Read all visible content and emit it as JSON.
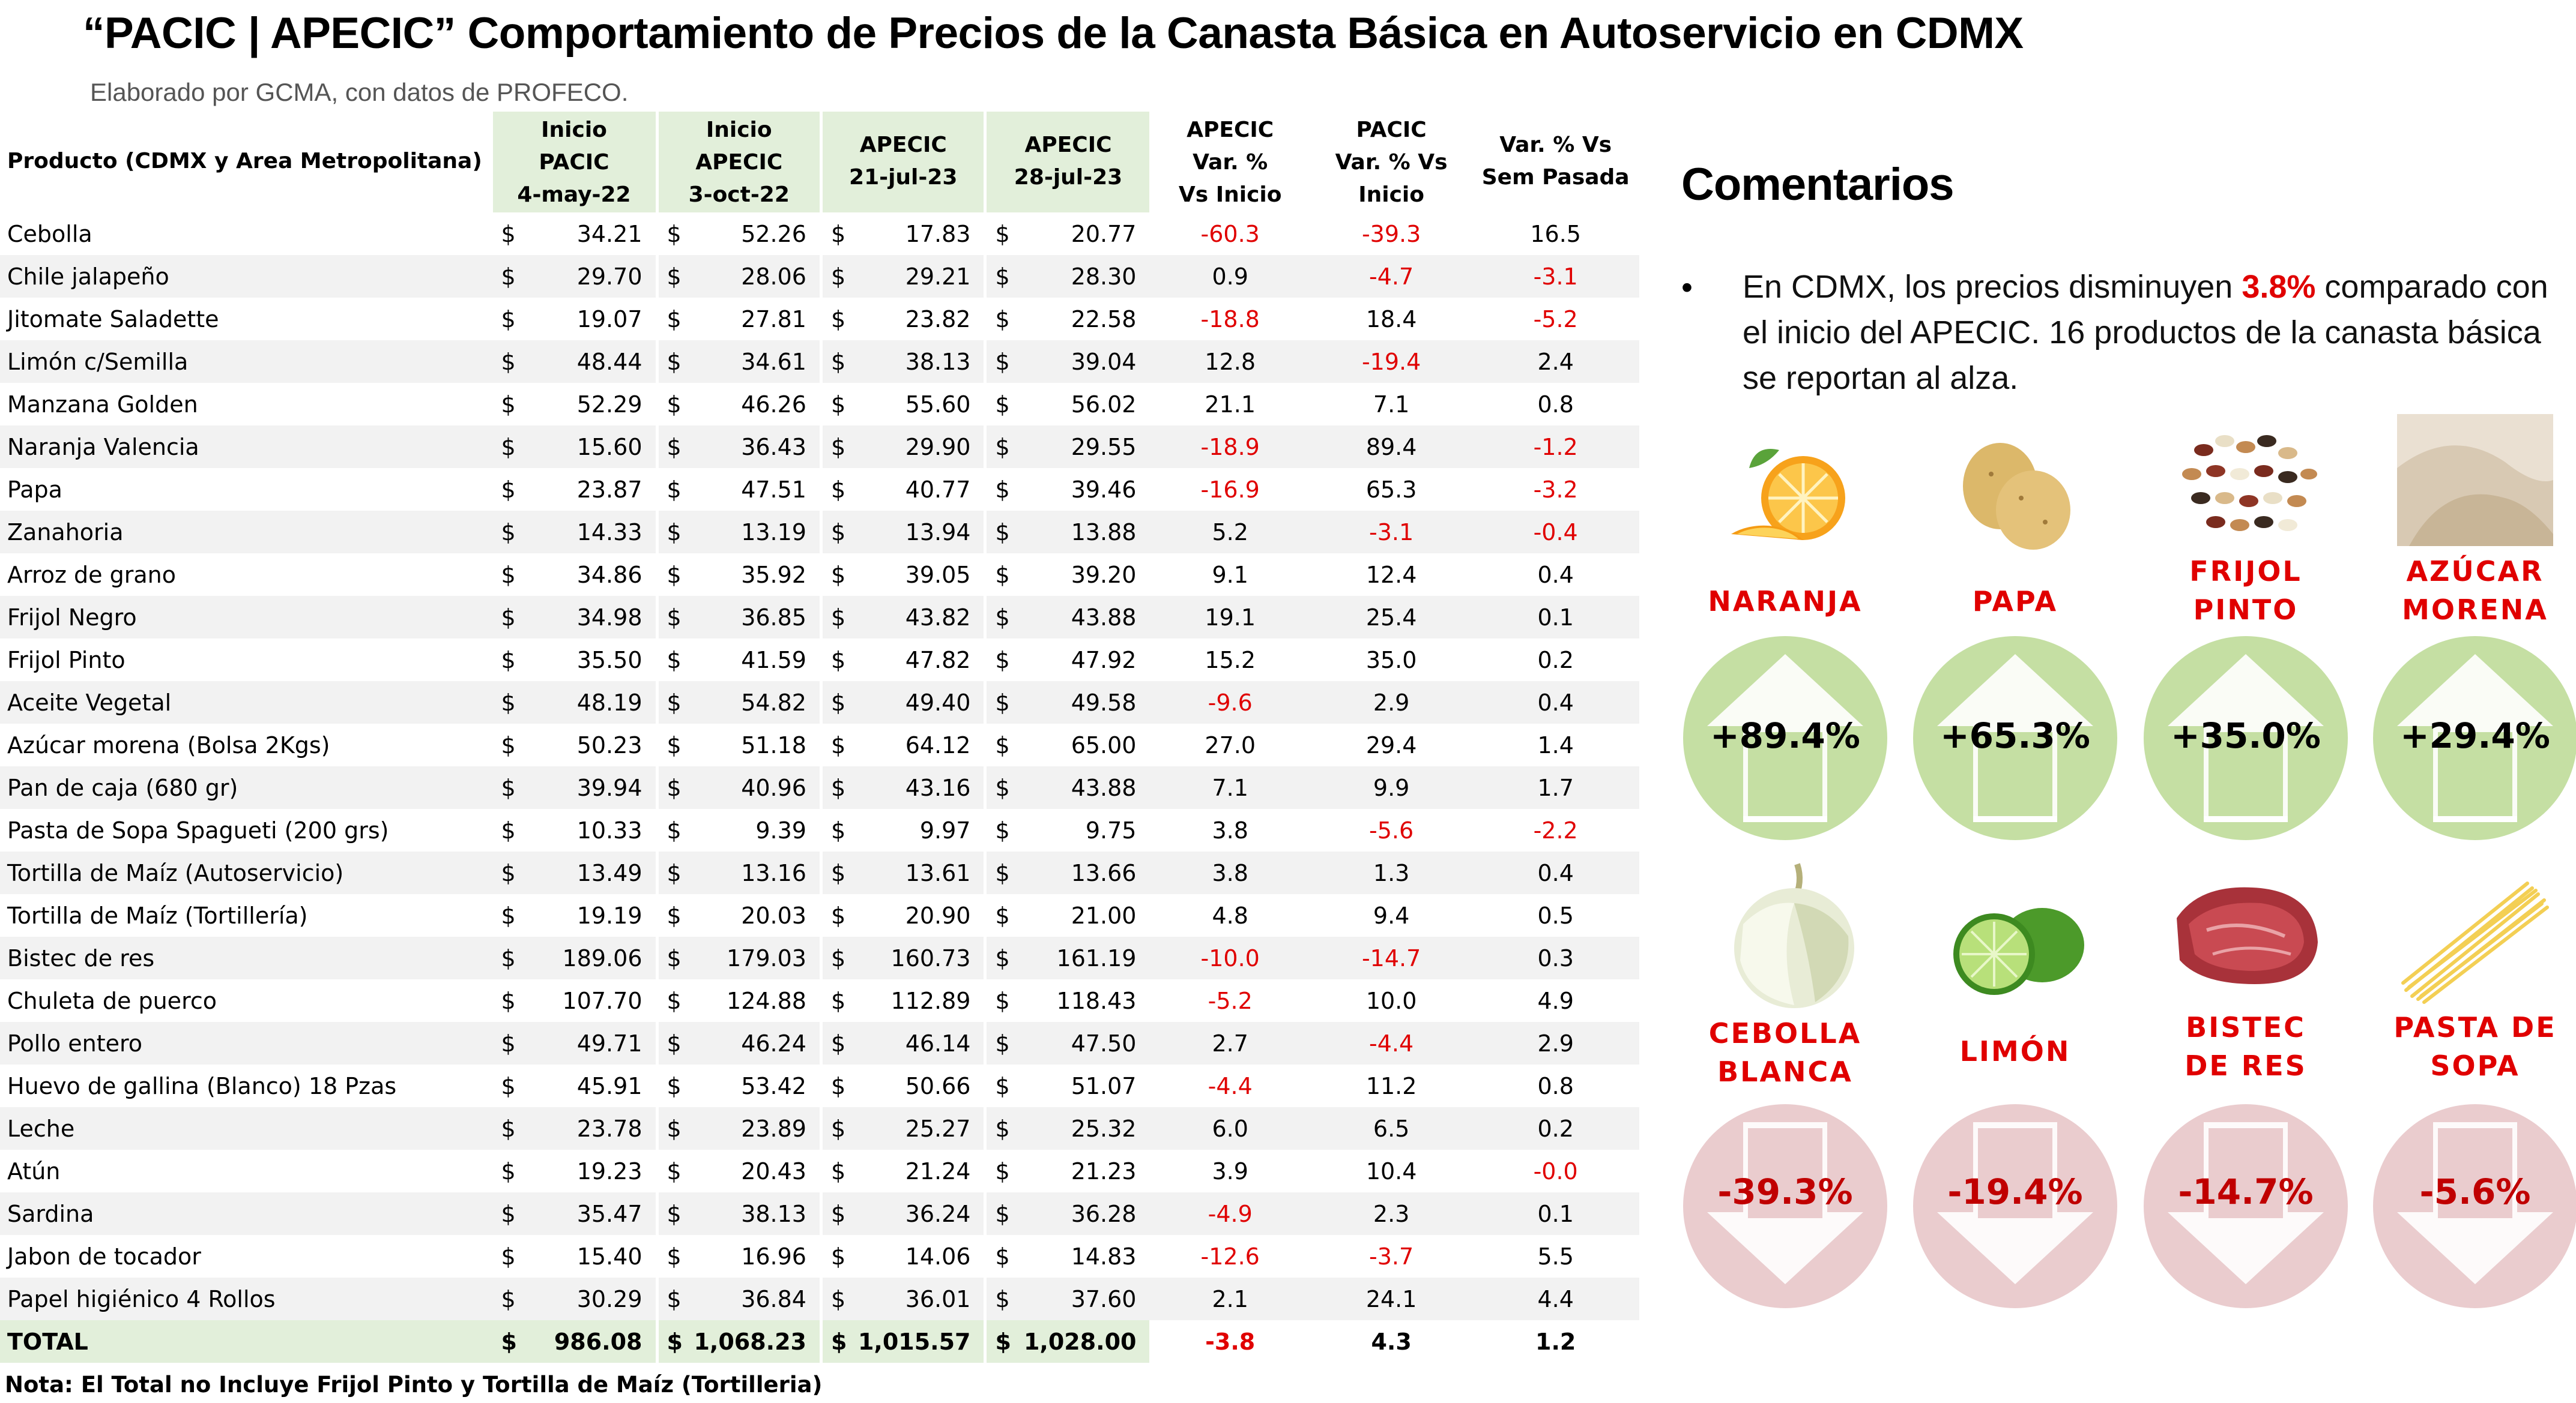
{
  "title": "“PACIC | APECIC” Comportamiento de Precios de la Canasta Básica en Autoservicio en CDMX",
  "subtitle": "Elaborado por GCMA, con datos de PROFECO.",
  "table": {
    "headers": {
      "product": "Producto (CDMX y Area Metropolitana)",
      "col1": [
        "Inicio",
        "PACIC",
        "4-may-22"
      ],
      "col2": [
        "Inicio",
        "APECIC",
        "3-oct-22"
      ],
      "col3": [
        "APECIC",
        "21-jul-23"
      ],
      "col4": [
        "APECIC",
        "28-jul-23"
      ],
      "col5": [
        "APECIC",
        "Var. %",
        "Vs  Inicio"
      ],
      "col6": [
        "PACIC",
        "Var. % Vs",
        "Inicio"
      ],
      "col7": [
        "Var. % Vs",
        "Sem Pasada"
      ]
    },
    "currency": "$",
    "rows": [
      {
        "name": "Cebolla",
        "v1": "34.21",
        "v2": "52.26",
        "v3": "17.83",
        "v4": "20.77",
        "p1": "-60.3",
        "p2": "-39.3",
        "p3": "16.5"
      },
      {
        "name": "Chile jalapeño",
        "v1": "29.70",
        "v2": "28.06",
        "v3": "29.21",
        "v4": "28.30",
        "p1": "0.9",
        "p2": "-4.7",
        "p3": "-3.1"
      },
      {
        "name": "Jitomate Saladette",
        "v1": "19.07",
        "v2": "27.81",
        "v3": "23.82",
        "v4": "22.58",
        "p1": "-18.8",
        "p2": "18.4",
        "p3": "-5.2"
      },
      {
        "name": "Limón c/Semilla",
        "v1": "48.44",
        "v2": "34.61",
        "v3": "38.13",
        "v4": "39.04",
        "p1": "12.8",
        "p2": "-19.4",
        "p3": "2.4"
      },
      {
        "name": "Manzana Golden",
        "v1": "52.29",
        "v2": "46.26",
        "v3": "55.60",
        "v4": "56.02",
        "p1": "21.1",
        "p2": "7.1",
        "p3": "0.8"
      },
      {
        "name": "Naranja Valencia",
        "v1": "15.60",
        "v2": "36.43",
        "v3": "29.90",
        "v4": "29.55",
        "p1": "-18.9",
        "p2": "89.4",
        "p3": "-1.2"
      },
      {
        "name": "Papa",
        "v1": "23.87",
        "v2": "47.51",
        "v3": "40.77",
        "v4": "39.46",
        "p1": "-16.9",
        "p2": "65.3",
        "p3": "-3.2"
      },
      {
        "name": "Zanahoria",
        "v1": "14.33",
        "v2": "13.19",
        "v3": "13.94",
        "v4": "13.88",
        "p1": "5.2",
        "p2": "-3.1",
        "p3": "-0.4"
      },
      {
        "name": "Arroz de grano",
        "v1": "34.86",
        "v2": "35.92",
        "v3": "39.05",
        "v4": "39.20",
        "p1": "9.1",
        "p2": "12.4",
        "p3": "0.4"
      },
      {
        "name": "Frijol Negro",
        "v1": "34.98",
        "v2": "36.85",
        "v3": "43.82",
        "v4": "43.88",
        "p1": "19.1",
        "p2": "25.4",
        "p3": "0.1"
      },
      {
        "name": "Frijol Pinto",
        "v1": "35.50",
        "v2": "41.59",
        "v3": "47.82",
        "v4": "47.92",
        "p1": "15.2",
        "p2": "35.0",
        "p3": "0.2"
      },
      {
        "name": "Aceite Vegetal",
        "v1": "48.19",
        "v2": "54.82",
        "v3": "49.40",
        "v4": "49.58",
        "p1": "-9.6",
        "p2": "2.9",
        "p3": "0.4"
      },
      {
        "name": "Azúcar morena (Bolsa 2Kgs)",
        "v1": "50.23",
        "v2": "51.18",
        "v3": "64.12",
        "v4": "65.00",
        "p1": "27.0",
        "p2": "29.4",
        "p3": "1.4"
      },
      {
        "name": "Pan de caja (680 gr)",
        "v1": "39.94",
        "v2": "40.96",
        "v3": "43.16",
        "v4": "43.88",
        "p1": "7.1",
        "p2": "9.9",
        "p3": "1.7"
      },
      {
        "name": "Pasta de Sopa Spagueti (200 grs)",
        "v1": "10.33",
        "v2": "9.39",
        "v3": "9.97",
        "v4": "9.75",
        "p1": "3.8",
        "p2": "-5.6",
        "p3": "-2.2"
      },
      {
        "name": "Tortilla de Maíz (Autoservicio)",
        "v1": "13.49",
        "v2": "13.16",
        "v3": "13.61",
        "v4": "13.66",
        "p1": "3.8",
        "p2": "1.3",
        "p3": "0.4"
      },
      {
        "name": "Tortilla de Maíz (Tortillería)",
        "v1": "19.19",
        "v2": "20.03",
        "v3": "20.90",
        "v4": "21.00",
        "p1": "4.8",
        "p2": "9.4",
        "p3": "0.5"
      },
      {
        "name": "Bistec de res",
        "v1": "189.06",
        "v2": "179.03",
        "v3": "160.73",
        "v4": "161.19",
        "p1": "-10.0",
        "p2": "-14.7",
        "p3": "0.3"
      },
      {
        "name": "Chuleta de puerco",
        "v1": "107.70",
        "v2": "124.88",
        "v3": "112.89",
        "v4": "118.43",
        "p1": "-5.2",
        "p2": "10.0",
        "p3": "4.9"
      },
      {
        "name": "Pollo entero",
        "v1": "49.71",
        "v2": "46.24",
        "v3": "46.14",
        "v4": "47.50",
        "p1": "2.7",
        "p2": "-4.4",
        "p3": "2.9"
      },
      {
        "name": "Huevo de gallina (Blanco) 18 Pzas",
        "v1": "45.91",
        "v2": "53.42",
        "v3": "50.66",
        "v4": "51.07",
        "p1": "-4.4",
        "p2": "11.2",
        "p3": "0.8"
      },
      {
        "name": "Leche",
        "v1": "23.78",
        "v2": "23.89",
        "v3": "25.27",
        "v4": "25.32",
        "p1": "6.0",
        "p2": "6.5",
        "p3": "0.2"
      },
      {
        "name": "Atún",
        "v1": "19.23",
        "v2": "20.43",
        "v3": "21.24",
        "v4": "21.23",
        "p1": "3.9",
        "p2": "10.4",
        "p3": "-0.0"
      },
      {
        "name": "Sardina",
        "v1": "35.47",
        "v2": "38.13",
        "v3": "36.24",
        "v4": "36.28",
        "p1": "-4.9",
        "p2": "2.3",
        "p3": "0.1"
      },
      {
        "name": "Jabon de tocador",
        "v1": "15.40",
        "v2": "16.96",
        "v3": "14.06",
        "v4": "14.83",
        "p1": "-12.6",
        "p2": "-3.7",
        "p3": "5.5"
      },
      {
        "name": "Papel higiénico 4 Rollos",
        "v1": "30.29",
        "v2": "36.84",
        "v3": "36.01",
        "v4": "37.60",
        "p1": "2.1",
        "p2": "24.1",
        "p3": "4.4"
      }
    ],
    "total": {
      "name": "TOTAL",
      "v1": "986.08",
      "v2": "1,068.23",
      "v3": "1,015.57",
      "v4": "1,028.00",
      "p1": "-3.8",
      "p2": "4.3",
      "p3": "1.2"
    },
    "note": "Nota: El Total no Incluye Frijol Pinto y Tortilla de Maíz (Tortilleria)"
  },
  "comments": {
    "title": "Comentarios",
    "bullet": "•",
    "text_before": "En CDMX, los precios disminuyen ",
    "highlight": "3.8%",
    "text_after": " comparado con el inicio del APECIC. 16 productos de la canasta básica se reportan al alza."
  },
  "colors": {
    "negative": "#e00000",
    "up_circle": "#c5dfa3",
    "down_circle": "#eaccce",
    "header_fill": "#e2efda",
    "label": "#e00000"
  },
  "cards_up": [
    {
      "label": [
        "NARANJA"
      ],
      "value": "+89.4%",
      "icon": "orange-icon"
    },
    {
      "label": [
        "PAPA"
      ],
      "value": "+65.3%",
      "icon": "potato-icon"
    },
    {
      "label": [
        "FRIJOL",
        "PINTO"
      ],
      "value": "+35.0%",
      "icon": "beans-icon"
    },
    {
      "label": [
        "AZÚCAR",
        "MORENA"
      ],
      "value": "+29.4%",
      "icon": "sugar-icon"
    }
  ],
  "cards_down": [
    {
      "label": [
        "CEBOLLA",
        "BLANCA"
      ],
      "value": "-39.3%",
      "icon": "onion-icon"
    },
    {
      "label": [
        "LIMÓN"
      ],
      "value": "-19.4%",
      "icon": "lime-icon"
    },
    {
      "label": [
        "BISTEC",
        "DE RES"
      ],
      "value": "-14.7%",
      "icon": "steak-icon"
    },
    {
      "label": [
        "PASTA DE",
        "SOPA"
      ],
      "value": "-5.6%",
      "icon": "pasta-icon"
    }
  ]
}
